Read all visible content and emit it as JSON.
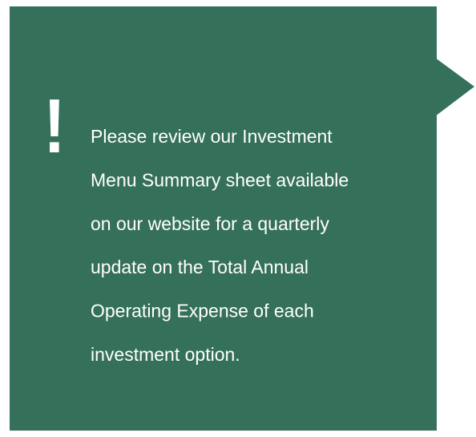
{
  "callout": {
    "icon": "!",
    "lines": [
      "Please review our Investment",
      "Menu Summary sheet available",
      "on our website for a quarterly",
      "update on the Total Annual",
      "Operating Expense of each",
      "investment option."
    ]
  }
}
